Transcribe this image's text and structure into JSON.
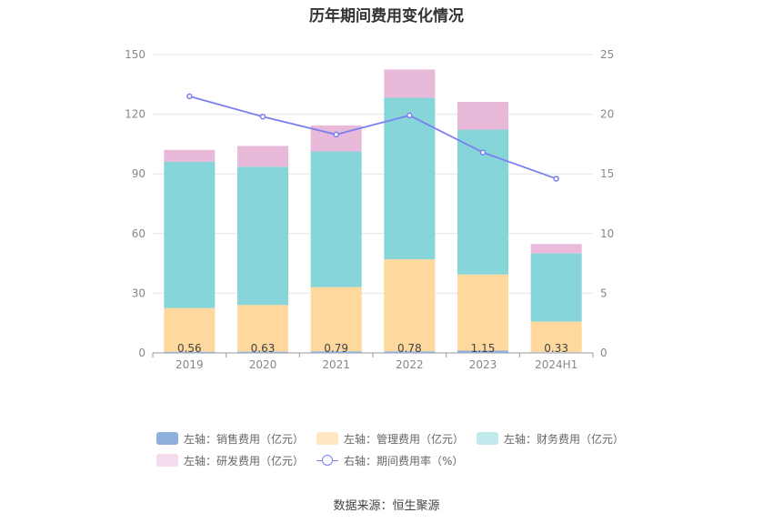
{
  "source_text": "数据来源：恒生聚源",
  "chart_data": {
    "type": "bar",
    "title": "历年期间费用变化情况",
    "categories": [
      "2019",
      "2020",
      "2021",
      "2022",
      "2023",
      "2024H1"
    ],
    "left_axis": {
      "ylim": [
        0,
        150
      ],
      "ticks": [
        0,
        30,
        60,
        90,
        120,
        150
      ]
    },
    "right_axis": {
      "ylim": [
        0,
        25
      ],
      "ticks": [
        0,
        5,
        10,
        15,
        20,
        25
      ]
    },
    "series": [
      {
        "name": "左轴：销售费用（亿元）",
        "axis": "left",
        "stack": true,
        "color": "#8fb0dc",
        "values": [
          0.56,
          0.63,
          0.79,
          0.78,
          1.15,
          0.33
        ],
        "labels": [
          "0.56",
          "0.63",
          "0.79",
          "0.78",
          "1.15",
          "0.33"
        ]
      },
      {
        "name": "左轴：管理费用（亿元）",
        "axis": "left",
        "stack": true,
        "color": "#fed89c",
        "values": [
          22,
          23.5,
          32.3,
          46.3,
          38.3,
          15.4
        ]
      },
      {
        "name": "左轴：财务费用（亿元）",
        "axis": "left",
        "stack": true,
        "color": "#86d5d9",
        "values": [
          73.5,
          69.5,
          68.2,
          81.2,
          72.8,
          34.3
        ]
      },
      {
        "name": "左轴：研发费用（亿元）",
        "axis": "left",
        "stack": true,
        "color": "#e9b9da",
        "values": [
          6,
          10.4,
          13.1,
          14.2,
          14,
          4.7
        ]
      },
      {
        "name": "右轴：期间费用率（%）",
        "axis": "right",
        "type": "line",
        "color": "#7a7ff0",
        "values": [
          21.5,
          19.8,
          18.3,
          19.9,
          16.8,
          14.6
        ]
      }
    ],
    "legend_swatch_colors": [
      "#8fb0dc",
      "#ffe7c2",
      "#c2eaec",
      "#f4dcee"
    ],
    "grid": true,
    "legend_position": "bottom"
  }
}
